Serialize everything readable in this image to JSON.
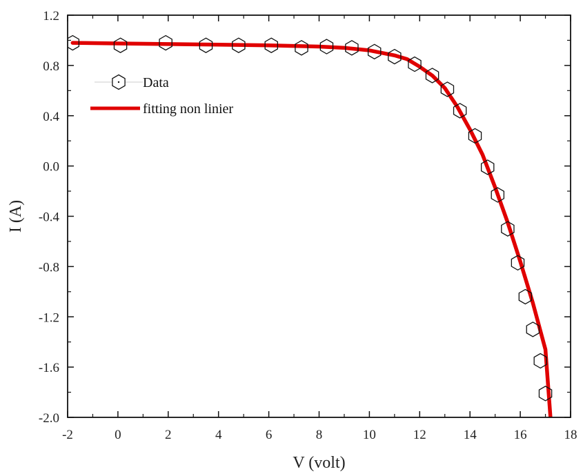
{
  "chart_data": {
    "type": "scatter",
    "xlabel": "V (volt)",
    "ylabel": "I (A)",
    "xlim": [
      -2,
      18
    ],
    "ylim": [
      -2.0,
      1.2
    ],
    "x_ticks": [
      "-2",
      "0",
      "2",
      "4",
      "6",
      "8",
      "10",
      "12",
      "14",
      "16",
      "18"
    ],
    "y_ticks": [
      "1.2",
      "0.8",
      "0.4",
      "0.0",
      "-0.4",
      "-0.8",
      "-1.2",
      "-1.6",
      "-2.0"
    ],
    "grid": false,
    "legend_position": "top-left",
    "series": [
      {
        "name": "Data",
        "kind": "markers",
        "marker": "hexagon-open",
        "color": "#111111",
        "x": [
          -1.8,
          0.1,
          1.9,
          3.5,
          4.8,
          6.1,
          7.3,
          8.3,
          9.3,
          10.2,
          11.0,
          11.8,
          12.5,
          13.1,
          13.6,
          14.2,
          14.7,
          15.1,
          15.5,
          15.9,
          16.2,
          16.5,
          16.8,
          17.0
        ],
        "y": [
          0.98,
          0.96,
          0.98,
          0.96,
          0.96,
          0.96,
          0.94,
          0.95,
          0.94,
          0.91,
          0.87,
          0.81,
          0.72,
          0.61,
          0.44,
          0.24,
          -0.01,
          -0.23,
          -0.5,
          -0.77,
          -1.04,
          -1.3,
          -1.55,
          -1.81
        ]
      },
      {
        "name": "fitting non linier",
        "kind": "line",
        "color": "#e00000",
        "x": [
          -1.8,
          0,
          2,
          4,
          6,
          8,
          9,
          10,
          10.5,
          11,
          11.5,
          12,
          12.5,
          13,
          13.5,
          14,
          14.5,
          15,
          15.5,
          16,
          16.5,
          17,
          17.2
        ],
        "y": [
          0.98,
          0.975,
          0.97,
          0.965,
          0.96,
          0.95,
          0.94,
          0.92,
          0.9,
          0.88,
          0.85,
          0.79,
          0.72,
          0.62,
          0.47,
          0.29,
          0.09,
          -0.17,
          -0.45,
          -0.76,
          -1.09,
          -1.46,
          -2.0
        ]
      }
    ]
  }
}
